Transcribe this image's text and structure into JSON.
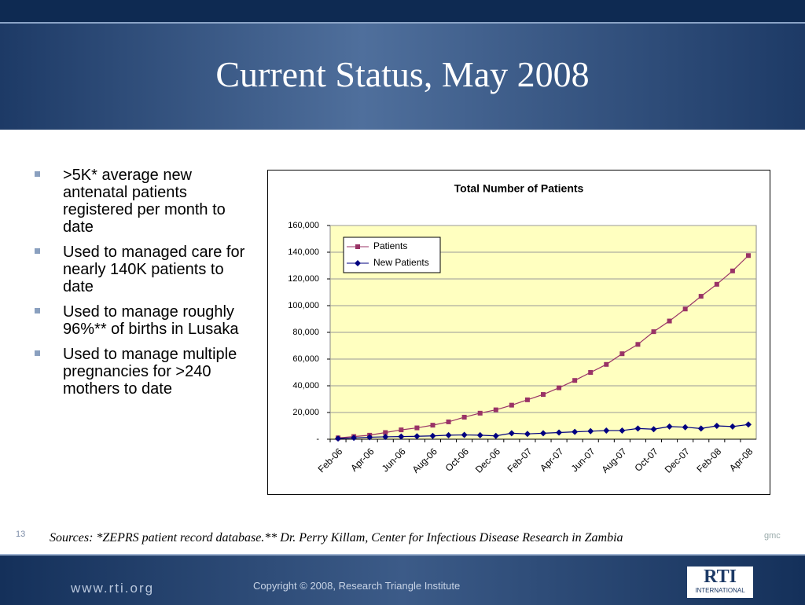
{
  "slide": {
    "title": "Current Status, May 2008",
    "bullets": [
      ">5K* average new antenatal patients registered per month to date",
      "Used to managed care for nearly 140K patients to date",
      "Used to manage roughly 96%** of births in Lusaka",
      "Used to manage multiple pregnancies for >240 mothers to date"
    ],
    "source": "Sources: *ZEPRS patient record database.** Dr. Perry Killam, Center for Infectious Disease Research in Zambia",
    "slide_number": "13",
    "initials": "gmc",
    "website": "www.rti.org",
    "copyright": "Copyright © 2008, Research Triangle Institute",
    "logo": "RTI",
    "logo_sub": "INTERNATIONAL"
  },
  "chart_data": {
    "type": "line",
    "title": "Total Number of Patients",
    "categories": [
      "Feb-06",
      null,
      "Apr-06",
      null,
      "Jun-06",
      null,
      "Aug-06",
      null,
      "Oct-06",
      null,
      "Dec-06",
      null,
      "Feb-07",
      null,
      "Apr-07",
      null,
      "Jun-07",
      null,
      "Aug-07",
      null,
      "Oct-07",
      null,
      "Dec-07",
      null,
      "Feb-08",
      null,
      "Apr-08"
    ],
    "series": [
      {
        "name": "Patients",
        "color": "#993366",
        "marker": "square",
        "values": [
          1000,
          2000,
          3000,
          5000,
          7000,
          8500,
          10500,
          13000,
          16500,
          19500,
          22000,
          25500,
          29500,
          33500,
          38500,
          44000,
          50000,
          56000,
          64000,
          71000,
          80500,
          88500,
          97500,
          107000,
          116000,
          126000,
          137500
        ]
      },
      {
        "name": "New Patients",
        "color": "#000080",
        "marker": "diamond",
        "values": [
          500,
          1000,
          1500,
          1800,
          2000,
          2200,
          2500,
          3000,
          3200,
          3000,
          2500,
          4500,
          4000,
          4500,
          5000,
          5500,
          6000,
          6500,
          6500,
          8000,
          7500,
          9500,
          9000,
          8000,
          10000,
          9500,
          11000
        ]
      }
    ],
    "ylim": [
      0,
      160000
    ],
    "yticks": [
      {
        "value": 0,
        "label": "-"
      },
      {
        "value": 20000,
        "label": "20,000"
      },
      {
        "value": 40000,
        "label": "40,000"
      },
      {
        "value": 60000,
        "label": "60,000"
      },
      {
        "value": 80000,
        "label": "80,000"
      },
      {
        "value": 100000,
        "label": "100,000"
      },
      {
        "value": 120000,
        "label": "120,000"
      },
      {
        "value": 140000,
        "label": "140,000"
      },
      {
        "value": 160000,
        "label": "160,000"
      }
    ],
    "grid": true,
    "legend": "upper left",
    "plot_background": "#ffffc0"
  }
}
